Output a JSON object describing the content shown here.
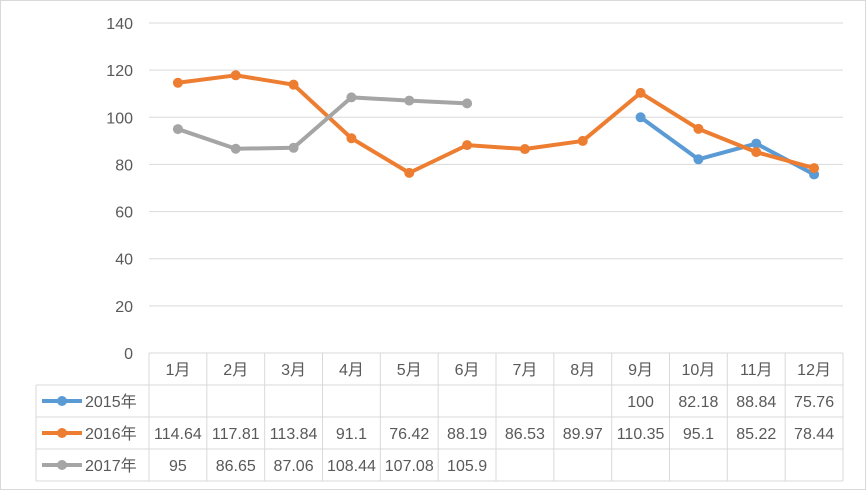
{
  "chart_data": {
    "type": "line",
    "title": "",
    "xlabel": "",
    "ylabel": "",
    "ylim": [
      0,
      140
    ],
    "yticks": [
      0,
      20,
      40,
      60,
      80,
      100,
      120,
      140
    ],
    "grid": true,
    "legend": "data-table-left",
    "categories": [
      "1月",
      "2月",
      "3月",
      "4月",
      "5月",
      "6月",
      "7月",
      "8月",
      "9月",
      "10月",
      "11月",
      "12月"
    ],
    "series": [
      {
        "name": "2015年",
        "color": "#5b9bd5",
        "values": [
          null,
          null,
          null,
          null,
          null,
          null,
          null,
          null,
          100,
          82.18,
          88.84,
          75.76
        ],
        "labels": [
          "",
          "",
          "",
          "",
          "",
          "",
          "",
          "",
          "100",
          "82.18",
          "88.84",
          "75.76"
        ]
      },
      {
        "name": "2016年",
        "color": "#ed7d31",
        "values": [
          114.64,
          117.81,
          113.84,
          91.1,
          76.42,
          88.19,
          86.53,
          89.97,
          110.35,
          95.1,
          85.22,
          78.44
        ],
        "labels": [
          "114.64",
          "117.81",
          "113.84",
          "91.1",
          "76.42",
          "88.19",
          "86.53",
          "89.97",
          "110.35",
          "95.1",
          "85.22",
          "78.44"
        ]
      },
      {
        "name": "2017年",
        "color": "#a5a5a5",
        "values": [
          95,
          86.65,
          87.06,
          108.44,
          107.08,
          105.9,
          null,
          null,
          null,
          null,
          null,
          null
        ],
        "labels": [
          "95",
          "86.65",
          "87.06",
          "108.44",
          "107.08",
          "105.9",
          "",
          "",
          "",
          "",
          "",
          ""
        ]
      }
    ]
  }
}
